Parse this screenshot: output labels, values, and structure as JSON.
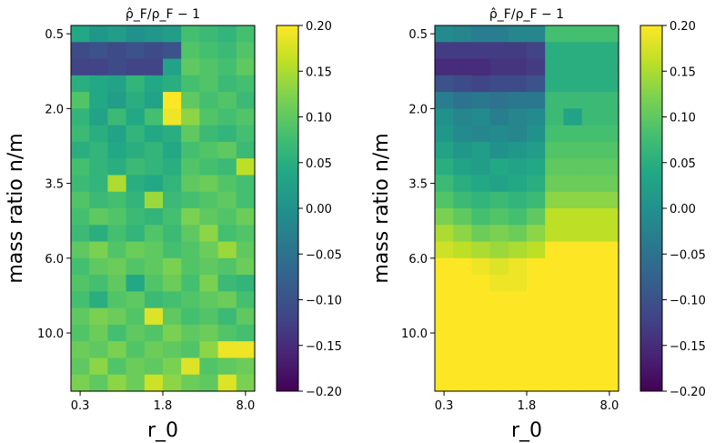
{
  "chart_data": [
    {
      "type": "heatmap",
      "title": "ρ̂_F/ρ_F − 1",
      "xlabel": "r_0",
      "ylabel": "mass ratio n/m",
      "xticks": [
        {
          "label": "0.3",
          "col": 0
        },
        {
          "label": "1.8",
          "col": 4.5
        },
        {
          "label": "8.0",
          "col": 9
        }
      ],
      "yticks": [
        {
          "label": "0.5",
          "row": 0
        },
        {
          "label": "2.0",
          "row": 4.5
        },
        {
          "label": "3.5",
          "row": 9
        },
        {
          "label": "6.0",
          "row": 13.5
        },
        {
          "label": "10.0",
          "row": 18
        }
      ],
      "vmin": -0.2,
      "vmax": 0.2,
      "colorbar_ticks": [
        "0.20",
        "0.15",
        "0.10",
        "0.05",
        "0.00",
        "−0.05",
        "−0.10",
        "−0.15",
        "−0.20"
      ],
      "colorbar_values": [
        0.2,
        0.15,
        0.1,
        0.05,
        0.0,
        -0.05,
        -0.1,
        -0.15,
        -0.2
      ],
      "values": [
        [
          0.04,
          0.01,
          0.02,
          0.0,
          0.01,
          0.02,
          0.08,
          0.07,
          0.06,
          0.08
        ],
        [
          -0.11,
          -0.1,
          -0.11,
          -0.1,
          -0.11,
          -0.1,
          0.09,
          0.08,
          0.07,
          0.09
        ],
        [
          -0.12,
          -0.12,
          -0.11,
          -0.12,
          -0.12,
          0.03,
          0.1,
          0.09,
          0.08,
          0.1
        ],
        [
          0.05,
          0.04,
          0.03,
          0.06,
          0.04,
          0.05,
          0.08,
          0.09,
          0.07,
          0.08
        ],
        [
          0.09,
          0.04,
          0.02,
          0.05,
          0.03,
          0.2,
          0.1,
          0.08,
          0.09,
          0.07
        ],
        [
          0.06,
          0.03,
          0.07,
          0.04,
          0.08,
          0.19,
          0.13,
          0.09,
          0.08,
          0.09
        ],
        [
          0.07,
          0.05,
          0.03,
          0.06,
          0.04,
          0.05,
          0.1,
          0.07,
          0.06,
          0.08
        ],
        [
          0.05,
          0.06,
          0.04,
          0.05,
          0.06,
          0.04,
          0.08,
          0.09,
          0.1,
          0.07
        ],
        [
          0.08,
          0.06,
          0.05,
          0.07,
          0.06,
          0.05,
          0.09,
          0.08,
          0.07,
          0.16
        ],
        [
          0.07,
          0.06,
          0.15,
          0.05,
          0.04,
          0.06,
          0.1,
          0.11,
          0.09,
          0.08
        ],
        [
          0.09,
          0.07,
          0.08,
          0.06,
          0.14,
          0.07,
          0.08,
          0.09,
          0.1,
          0.08
        ],
        [
          0.08,
          0.1,
          0.09,
          0.07,
          0.06,
          0.08,
          0.12,
          0.1,
          0.09,
          0.11
        ],
        [
          0.07,
          0.05,
          0.08,
          0.06,
          0.09,
          0.07,
          0.1,
          0.13,
          0.08,
          0.09
        ],
        [
          0.1,
          0.12,
          0.09,
          0.11,
          0.1,
          0.08,
          0.09,
          0.11,
          0.14,
          0.1
        ],
        [
          0.08,
          0.1,
          0.11,
          0.09,
          0.1,
          0.12,
          0.09,
          0.1,
          0.09,
          0.11
        ],
        [
          0.09,
          0.08,
          0.1,
          0.04,
          0.09,
          0.11,
          0.08,
          0.12,
          0.07,
          0.06
        ],
        [
          0.08,
          0.05,
          0.09,
          0.1,
          0.07,
          0.08,
          0.09,
          0.1,
          0.11,
          0.08
        ],
        [
          0.1,
          0.12,
          0.11,
          0.09,
          0.18,
          0.1,
          0.08,
          0.09,
          0.07,
          0.1
        ],
        [
          0.09,
          0.11,
          0.08,
          0.1,
          0.09,
          0.12,
          0.1,
          0.11,
          0.09,
          0.08
        ],
        [
          0.11,
          0.1,
          0.12,
          0.09,
          0.11,
          0.1,
          0.09,
          0.13,
          0.19,
          0.19
        ],
        [
          0.1,
          0.13,
          0.09,
          0.11,
          0.1,
          0.12,
          0.18,
          0.09,
          0.1,
          0.11
        ],
        [
          0.12,
          0.1,
          0.13,
          0.11,
          0.17,
          0.13,
          0.11,
          0.1,
          0.18,
          0.12
        ]
      ]
    },
    {
      "type": "heatmap",
      "title": "ρ̂_F/ρ_F − 1",
      "xlabel": "r_0",
      "ylabel": "mass ratio n/m",
      "xticks": [
        {
          "label": "0.3",
          "col": 0
        },
        {
          "label": "1.8",
          "col": 4.5
        },
        {
          "label": "8.0",
          "col": 9
        }
      ],
      "yticks": [
        {
          "label": "0.5",
          "row": 0
        },
        {
          "label": "2.0",
          "row": 4.5
        },
        {
          "label": "3.5",
          "row": 9
        },
        {
          "label": "6.0",
          "row": 13.5
        },
        {
          "label": "10.0",
          "row": 18
        }
      ],
      "vmin": -0.2,
      "vmax": 0.2,
      "colorbar_ticks": [
        "0.20",
        "0.15",
        "0.10",
        "0.05",
        "0.00",
        "−0.05",
        "−0.10",
        "−0.15",
        "−0.20"
      ],
      "colorbar_values": [
        0.2,
        0.15,
        0.1,
        0.05,
        0.0,
        -0.05,
        -0.1,
        -0.15,
        -0.2
      ],
      "values": [
        [
          -0.01,
          -0.02,
          -0.03,
          -0.03,
          -0.02,
          -0.02,
          0.08,
          0.08,
          0.08,
          0.08
        ],
        [
          -0.13,
          -0.13,
          -0.13,
          -0.13,
          -0.13,
          -0.12,
          0.05,
          0.05,
          0.05,
          0.05
        ],
        [
          -0.15,
          -0.15,
          -0.15,
          -0.14,
          -0.14,
          -0.13,
          0.05,
          0.05,
          0.05,
          0.05
        ],
        [
          -0.1,
          -0.11,
          -0.12,
          -0.11,
          -0.11,
          -0.1,
          0.05,
          0.05,
          0.05,
          0.05
        ],
        [
          -0.03,
          -0.05,
          -0.04,
          -0.05,
          -0.04,
          -0.04,
          0.07,
          0.07,
          0.07,
          0.07
        ],
        [
          0.0,
          -0.02,
          -0.01,
          -0.03,
          -0.02,
          -0.01,
          0.07,
          0.03,
          0.07,
          0.07
        ],
        [
          0.01,
          -0.01,
          -0.02,
          -0.01,
          -0.02,
          0.0,
          0.08,
          0.08,
          0.08,
          0.08
        ],
        [
          0.03,
          0.01,
          0.02,
          0.0,
          0.01,
          0.02,
          0.09,
          0.09,
          0.09,
          0.09
        ],
        [
          0.05,
          0.03,
          0.02,
          0.04,
          0.03,
          0.04,
          0.1,
          0.1,
          0.1,
          0.1
        ],
        [
          0.07,
          0.05,
          0.04,
          0.03,
          0.04,
          0.05,
          0.11,
          0.11,
          0.11,
          0.11
        ],
        [
          0.09,
          0.07,
          0.06,
          0.07,
          0.06,
          0.07,
          0.13,
          0.13,
          0.13,
          0.13
        ],
        [
          0.12,
          0.1,
          0.08,
          0.09,
          0.08,
          0.1,
          0.16,
          0.16,
          0.16,
          0.16
        ],
        [
          0.15,
          0.13,
          0.11,
          0.12,
          0.11,
          0.13,
          0.16,
          0.16,
          0.16,
          0.16
        ],
        [
          0.17,
          0.16,
          0.15,
          0.14,
          0.15,
          0.16,
          0.2,
          0.2,
          0.2,
          0.2
        ],
        [
          0.2,
          0.2,
          0.19,
          0.18,
          0.19,
          0.2,
          0.2,
          0.2,
          0.2,
          0.2
        ],
        [
          0.2,
          0.2,
          0.2,
          0.19,
          0.19,
          0.2,
          0.2,
          0.2,
          0.2,
          0.2
        ],
        [
          0.2,
          0.2,
          0.2,
          0.2,
          0.2,
          0.2,
          0.2,
          0.2,
          0.2,
          0.2
        ],
        [
          0.2,
          0.2,
          0.2,
          0.2,
          0.2,
          0.2,
          0.2,
          0.2,
          0.2,
          0.2
        ],
        [
          0.2,
          0.2,
          0.2,
          0.2,
          0.2,
          0.2,
          0.2,
          0.2,
          0.2,
          0.2
        ],
        [
          0.2,
          0.2,
          0.2,
          0.2,
          0.2,
          0.2,
          0.2,
          0.2,
          0.2,
          0.2
        ],
        [
          0.2,
          0.2,
          0.2,
          0.2,
          0.2,
          0.2,
          0.2,
          0.2,
          0.2,
          0.2
        ],
        [
          0.2,
          0.2,
          0.2,
          0.2,
          0.2,
          0.2,
          0.2,
          0.2,
          0.2,
          0.2
        ]
      ]
    }
  ]
}
